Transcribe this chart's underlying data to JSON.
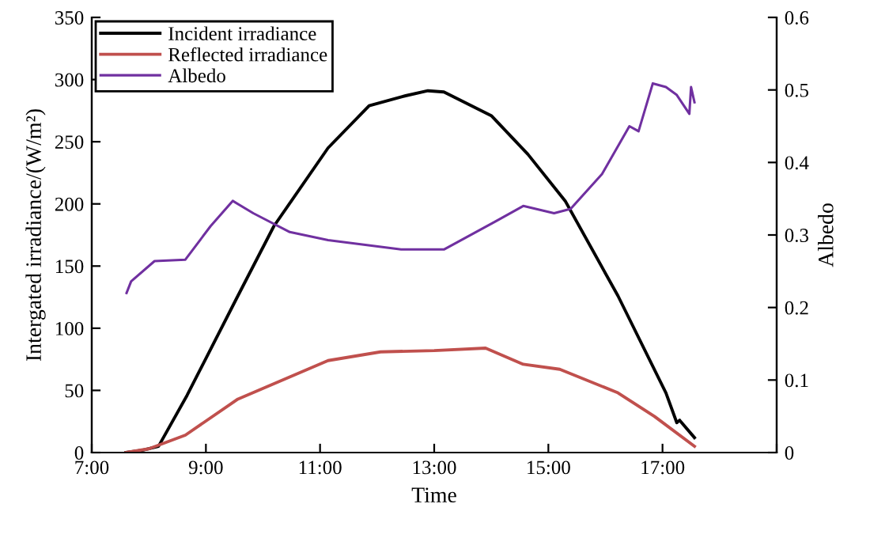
{
  "chart_data": {
    "type": "line",
    "xlabel": "Time",
    "ylabel": "Intergated irradiance/(W/m²)",
    "y2label": "Albedo",
    "xlim": [
      7,
      19
    ],
    "xticks": [
      {
        "value": 7,
        "label": "7:00"
      },
      {
        "value": 9,
        "label": "9:00"
      },
      {
        "value": 11,
        "label": "11:00"
      },
      {
        "value": 13,
        "label": "13:00"
      },
      {
        "value": 15,
        "label": "15:00"
      },
      {
        "value": 17,
        "label": "17:00"
      },
      {
        "value": 19,
        "label": null
      }
    ],
    "ylim": [
      0,
      350
    ],
    "yticks": [
      0,
      50,
      100,
      150,
      200,
      250,
      300,
      350
    ],
    "y2lim": [
      0,
      0.6
    ],
    "y2ticks": [
      0,
      0.1,
      0.2,
      0.3,
      0.4,
      0.5,
      0.6
    ],
    "legend": "top left",
    "grid": false,
    "marker": "none",
    "line_style": "solid",
    "series": [
      {
        "name": "Incident irradiance",
        "color": "#000000",
        "x": [
          7.6,
          7.9,
          8.17,
          8.67,
          9.56,
          10.19,
          11.14,
          11.86,
          12.5,
          12.89,
          13.17,
          14.0,
          14.64,
          15.3,
          16.22,
          17.06,
          17.25,
          17.3,
          17.56
        ],
        "values": [
          0,
          2,
          5,
          46,
          126,
          182,
          245,
          279,
          287,
          291,
          290,
          271,
          240,
          202,
          126,
          48,
          24,
          26,
          12
        ]
      },
      {
        "name": "Reflected irradiance",
        "color": "#c0504d",
        "x": [
          7.6,
          8.0,
          8.64,
          9.56,
          11.14,
          12.06,
          13.0,
          13.9,
          14.56,
          15.2,
          16.22,
          16.86,
          17.56
        ],
        "values": [
          0,
          3,
          14,
          43,
          74,
          81,
          82,
          84,
          71,
          67,
          48,
          29,
          5
        ]
      },
      {
        "name": "Albedo",
        "axis": "y2",
        "color": "#7030a0",
        "x": [
          7.61,
          7.69,
          8.1,
          8.64,
          9.08,
          9.47,
          9.83,
          10.47,
          11.14,
          12.42,
          13.17,
          14.08,
          14.56,
          15.1,
          15.39,
          15.94,
          16.42,
          16.58,
          16.83,
          17.06,
          17.25,
          17.47,
          17.5,
          17.56
        ],
        "values": [
          0.22,
          0.236,
          0.264,
          0.266,
          0.312,
          0.347,
          0.33,
          0.304,
          0.293,
          0.28,
          0.28,
          0.319,
          0.34,
          0.33,
          0.336,
          0.384,
          0.45,
          0.443,
          0.509,
          0.504,
          0.493,
          0.467,
          0.504,
          0.483
        ]
      }
    ]
  }
}
